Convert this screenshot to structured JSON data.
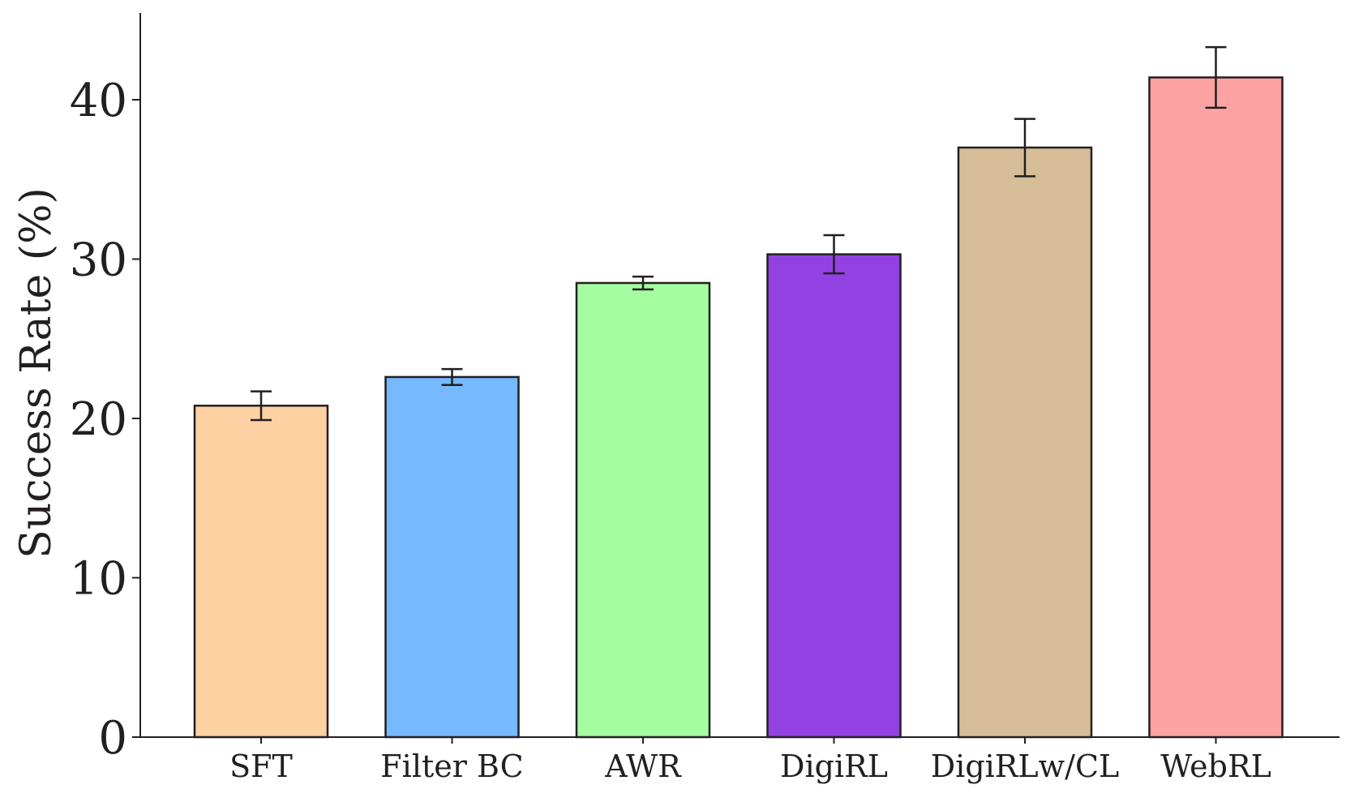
{
  "chart_data": {
    "type": "bar",
    "title": "",
    "xlabel": "",
    "ylabel": "Success Rate (%)",
    "categories": [
      "SFT",
      "Filter BC",
      "AWR",
      "DigiRL",
      "DigiRLw/CL",
      "WebRL"
    ],
    "values": [
      20.8,
      22.6,
      28.5,
      30.3,
      37.0,
      41.4
    ],
    "errors": [
      0.9,
      0.5,
      0.4,
      1.2,
      1.8,
      1.9
    ],
    "colors": [
      "#fdd1a2",
      "#76b9ff",
      "#a4fea1",
      "#9341e3",
      "#d6bd98",
      "#fea3a3"
    ],
    "ylim": [
      0,
      45
    ],
    "yticks": [
      0,
      10,
      20,
      30,
      40
    ],
    "grid": false,
    "legend": "none"
  }
}
